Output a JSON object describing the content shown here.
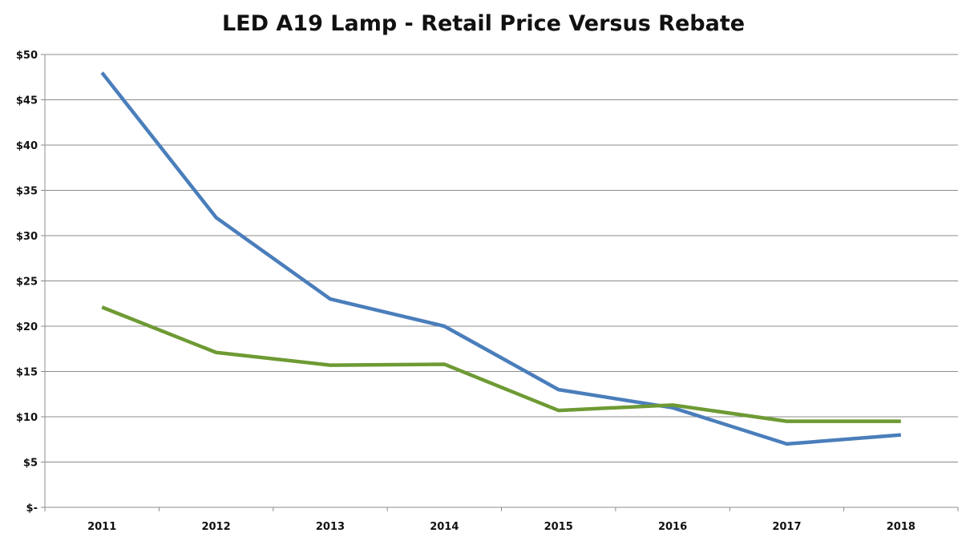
{
  "chart_data": {
    "type": "line",
    "title": "LED A19 Lamp - Retail Price Versus Rebate",
    "xlabel": "",
    "ylabel": "",
    "categories": [
      "2011",
      "2012",
      "2013",
      "2014",
      "2015",
      "2016",
      "2017",
      "2018"
    ],
    "ylim": [
      0,
      50
    ],
    "yticks": [
      0,
      5,
      10,
      15,
      20,
      25,
      30,
      35,
      40,
      45,
      50
    ],
    "ytick_labels": [
      "$-",
      "$5",
      "$10",
      "$15",
      "$20",
      "$25",
      "$30",
      "$35",
      "$40",
      "$45",
      "$50"
    ],
    "grid": "horizontal",
    "legend": "none",
    "series": [
      {
        "color": "#4a7ebb",
        "values": [
          48,
          32,
          23,
          20,
          13,
          11,
          7,
          8
        ]
      },
      {
        "color": "#6e9a34",
        "values": [
          22.1,
          17.1,
          15.7,
          15.8,
          10.7,
          11.3,
          9.5,
          9.5
        ]
      }
    ]
  }
}
